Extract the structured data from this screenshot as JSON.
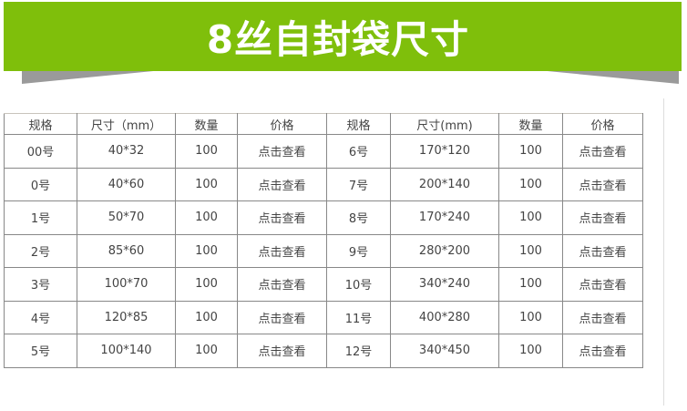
{
  "title": "8丝自封袋尺寸",
  "colors": {
    "banner": "#7fbf0b",
    "shadow": "#9a9a9a"
  },
  "headers": [
    "规格",
    "尺寸（mm）",
    "数量",
    "价格",
    "规格",
    "尺寸(mm)",
    "数量",
    "价格"
  ],
  "rows": [
    [
      "00号",
      "40*32",
      "100",
      "点击查看",
      "6号",
      "170*120",
      "100",
      "点击查看"
    ],
    [
      "0号",
      "40*60",
      "100",
      "点击查看",
      "7号",
      "200*140",
      "100",
      "点击查看"
    ],
    [
      "1号",
      "50*70",
      "100",
      "点击查看",
      "8号",
      "170*240",
      "100",
      "点击查看"
    ],
    [
      "2号",
      "85*60",
      "100",
      "点击查看",
      "9号",
      "280*200",
      "100",
      "点击查看"
    ],
    [
      "3号",
      "100*70",
      "100",
      "点击查看",
      "10号",
      "340*240",
      "100",
      "点击查看"
    ],
    [
      "4号",
      "120*85",
      "100",
      "点击查看",
      "11号",
      "400*280",
      "100",
      "点击查看"
    ],
    [
      "5号",
      "100*140",
      "100",
      "点击查看",
      "12号",
      "340*450",
      "100",
      "点击查看"
    ]
  ]
}
